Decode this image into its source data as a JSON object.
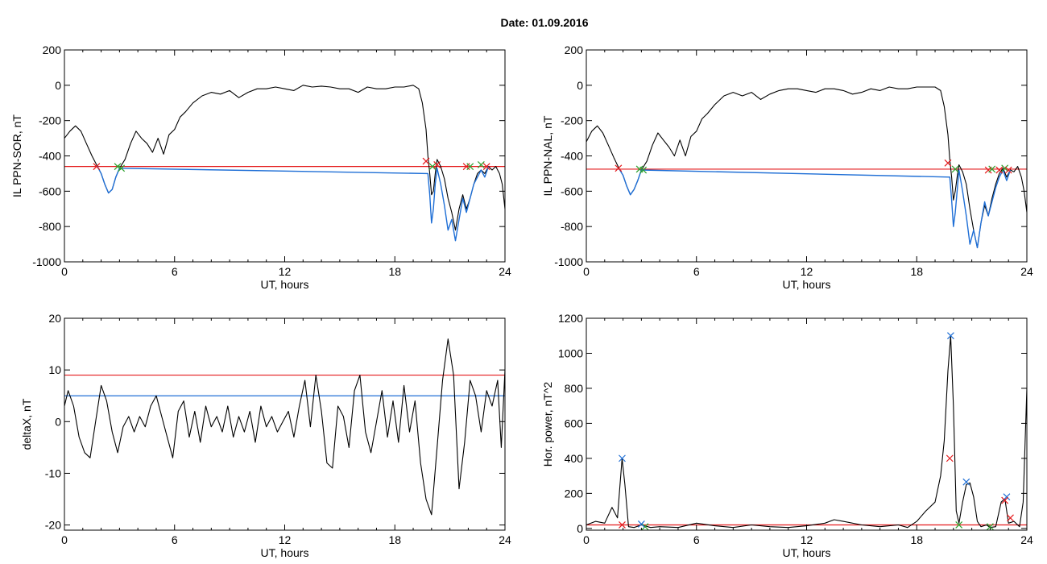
{
  "figure": {
    "title": "Date:  01.09.2016"
  },
  "colors": {
    "black": "#000000",
    "red": "#e41a1c",
    "blue": "#1f6fd6",
    "green": "#2ca02c"
  },
  "chart_data": [
    {
      "id": "ppn-sor",
      "type": "line",
      "xlabel": "UT, hours",
      "ylabel": "IL PPN-SOR, nT",
      "xlim": [
        0,
        24
      ],
      "ylim": [
        -1000,
        200
      ],
      "xticks": [
        0,
        6,
        12,
        18,
        24
      ],
      "yticks": [
        -1000,
        -800,
        -600,
        -400,
        -200,
        0,
        200
      ],
      "hlines": [
        {
          "y": -460,
          "color": "red"
        }
      ],
      "series": [
        {
          "color": "black",
          "x": [
            0,
            0.3,
            0.6,
            0.9,
            1.2,
            1.5,
            1.8,
            2.0,
            2.2,
            2.4,
            2.6,
            2.8,
            3.0,
            3.3,
            3.6,
            3.9,
            4.2,
            4.5,
            4.8,
            5.1,
            5.4,
            5.7,
            6.0,
            6.3,
            6.6,
            7.0,
            7.5,
            8.0,
            8.5,
            9.0,
            9.5,
            10.0,
            10.5,
            11.0,
            11.5,
            12.0,
            12.5,
            13.0,
            13.5,
            14.0,
            14.5,
            15.0,
            15.5,
            16.0,
            16.5,
            17.0,
            17.5,
            18.0,
            18.5,
            19.0,
            19.3,
            19.5,
            19.7,
            19.8,
            19.9,
            20.0,
            20.1,
            20.2,
            20.3,
            20.5,
            20.7,
            20.9,
            21.1,
            21.3,
            21.5,
            21.7,
            21.9,
            22.1,
            22.3,
            22.5,
            22.7,
            22.9,
            23.1,
            23.3,
            23.5,
            23.7,
            23.85,
            24.0
          ],
          "y": [
            -300,
            -260,
            -230,
            -260,
            -330,
            -400,
            -460,
            -500,
            -560,
            -610,
            -590,
            -520,
            -470,
            -420,
            -330,
            -260,
            -300,
            -330,
            -380,
            -300,
            -390,
            -280,
            -250,
            -180,
            -150,
            -100,
            -60,
            -40,
            -50,
            -30,
            -70,
            -40,
            -20,
            -20,
            -10,
            -20,
            -30,
            0,
            -10,
            -5,
            -10,
            -20,
            -20,
            -40,
            -10,
            -20,
            -20,
            -10,
            -10,
            0,
            -20,
            -100,
            -250,
            -400,
            -500,
            -620,
            -600,
            -500,
            -420,
            -460,
            -530,
            -640,
            -720,
            -820,
            -700,
            -620,
            -700,
            -640,
            -560,
            -500,
            -480,
            -500,
            -460,
            -480,
            -460,
            -500,
            -560,
            -700
          ]
        },
        {
          "color": "blue",
          "x": [
            1.8,
            2.0,
            2.2,
            2.4,
            2.6,
            2.8,
            3.0,
            19.8,
            19.9,
            20.0,
            20.1,
            20.2,
            20.3,
            20.5,
            20.7,
            20.9,
            21.1,
            21.3,
            21.5,
            21.7,
            21.9,
            22.1,
            22.3,
            22.5,
            22.7,
            22.9,
            23.1
          ],
          "y": [
            -460,
            -500,
            -560,
            -610,
            -590,
            -520,
            -470,
            -500,
            -620,
            -780,
            -700,
            -560,
            -470,
            -560,
            -680,
            -820,
            -760,
            -880,
            -760,
            -640,
            -720,
            -640,
            -560,
            -520,
            -480,
            -520,
            -460
          ]
        }
      ],
      "markers": [
        {
          "x": 1.75,
          "y": -460,
          "color": "red"
        },
        {
          "x": 2.9,
          "y": -460,
          "color": "green"
        },
        {
          "x": 3.1,
          "y": -470,
          "color": "green"
        },
        {
          "x": 19.7,
          "y": -430,
          "color": "red"
        },
        {
          "x": 20.05,
          "y": -460,
          "color": "green"
        },
        {
          "x": 20.3,
          "y": -450,
          "color": "red"
        },
        {
          "x": 21.9,
          "y": -460,
          "color": "red"
        },
        {
          "x": 22.1,
          "y": -460,
          "color": "green"
        },
        {
          "x": 22.7,
          "y": -450,
          "color": "green"
        },
        {
          "x": 23.0,
          "y": -460,
          "color": "red"
        }
      ]
    },
    {
      "id": "ppn-nal",
      "type": "line",
      "xlabel": "UT, hours",
      "ylabel": "IL PPN-NAL, nT",
      "xlim": [
        0,
        24
      ],
      "ylim": [
        -1000,
        200
      ],
      "xticks": [
        0,
        6,
        12,
        18,
        24
      ],
      "yticks": [
        -1000,
        -800,
        -600,
        -400,
        -200,
        0,
        200
      ],
      "hlines": [
        {
          "y": -475,
          "color": "red"
        }
      ],
      "series": [
        {
          "color": "black",
          "x": [
            0,
            0.3,
            0.6,
            0.9,
            1.2,
            1.5,
            1.8,
            2.0,
            2.2,
            2.4,
            2.6,
            2.8,
            3.0,
            3.3,
            3.6,
            3.9,
            4.2,
            4.5,
            4.8,
            5.1,
            5.4,
            5.7,
            6.0,
            6.3,
            6.6,
            7.0,
            7.5,
            8.0,
            8.5,
            9.0,
            9.5,
            10.0,
            10.5,
            11.0,
            11.5,
            12.0,
            12.5,
            13.0,
            13.5,
            14.0,
            14.5,
            15.0,
            15.5,
            16.0,
            16.5,
            17.0,
            17.5,
            18.0,
            18.5,
            19.0,
            19.3,
            19.5,
            19.7,
            19.8,
            19.9,
            20.0,
            20.1,
            20.2,
            20.3,
            20.5,
            20.7,
            20.9,
            21.1,
            21.3,
            21.5,
            21.7,
            21.9,
            22.1,
            22.3,
            22.5,
            22.7,
            22.9,
            23.1,
            23.3,
            23.5,
            23.7,
            23.85,
            24.0
          ],
          "y": [
            -320,
            -260,
            -230,
            -270,
            -340,
            -410,
            -475,
            -510,
            -570,
            -620,
            -590,
            -540,
            -480,
            -430,
            -340,
            -270,
            -310,
            -350,
            -400,
            -310,
            -400,
            -290,
            -260,
            -190,
            -160,
            -110,
            -60,
            -40,
            -60,
            -40,
            -80,
            -50,
            -30,
            -20,
            -20,
            -30,
            -40,
            -20,
            -20,
            -30,
            -50,
            -40,
            -20,
            -30,
            -10,
            -20,
            -20,
            -10,
            -10,
            -10,
            -30,
            -120,
            -280,
            -420,
            -520,
            -650,
            -600,
            -520,
            -450,
            -490,
            -560,
            -700,
            -820,
            -920,
            -780,
            -680,
            -740,
            -640,
            -560,
            -500,
            -470,
            -520,
            -480,
            -490,
            -460,
            -520,
            -600,
            -720
          ]
        },
        {
          "color": "blue",
          "x": [
            1.8,
            2.0,
            2.2,
            2.4,
            2.6,
            2.8,
            3.0,
            19.8,
            19.9,
            20.0,
            20.1,
            20.2,
            20.3,
            20.5,
            20.7,
            20.9,
            21.1,
            21.3,
            21.5,
            21.7,
            21.9,
            22.1,
            22.3,
            22.5,
            22.7,
            22.9,
            23.1
          ],
          "y": [
            -475,
            -510,
            -570,
            -620,
            -590,
            -540,
            -480,
            -520,
            -650,
            -800,
            -720,
            -600,
            -480,
            -600,
            -740,
            -900,
            -820,
            -920,
            -780,
            -660,
            -740,
            -660,
            -580,
            -520,
            -480,
            -540,
            -480
          ]
        }
      ],
      "markers": [
        {
          "x": 1.75,
          "y": -470,
          "color": "red"
        },
        {
          "x": 2.9,
          "y": -475,
          "color": "green"
        },
        {
          "x": 3.1,
          "y": -480,
          "color": "green"
        },
        {
          "x": 19.7,
          "y": -440,
          "color": "red"
        },
        {
          "x": 20.1,
          "y": -475,
          "color": "green"
        },
        {
          "x": 21.9,
          "y": -480,
          "color": "red"
        },
        {
          "x": 22.1,
          "y": -475,
          "color": "green"
        },
        {
          "x": 22.5,
          "y": -480,
          "color": "red"
        },
        {
          "x": 22.8,
          "y": -470,
          "color": "green"
        },
        {
          "x": 23.0,
          "y": -480,
          "color": "red"
        }
      ]
    },
    {
      "id": "deltax",
      "type": "line",
      "xlabel": "UT, hours",
      "ylabel": "deltaX, nT",
      "xlim": [
        0,
        24
      ],
      "ylim": [
        -21,
        20
      ],
      "xticks": [
        0,
        6,
        12,
        18,
        24
      ],
      "yticks": [
        -20,
        -10,
        0,
        10,
        20
      ],
      "hlines": [
        {
          "y": 9,
          "color": "red"
        },
        {
          "y": 5,
          "color": "blue"
        }
      ],
      "series": [
        {
          "color": "black",
          "x": [
            0,
            0.2,
            0.5,
            0.8,
            1.1,
            1.4,
            1.7,
            2.0,
            2.3,
            2.6,
            2.9,
            3.2,
            3.5,
            3.8,
            4.1,
            4.4,
            4.7,
            5.0,
            5.3,
            5.6,
            5.9,
            6.2,
            6.5,
            6.8,
            7.1,
            7.4,
            7.7,
            8.0,
            8.3,
            8.6,
            8.9,
            9.2,
            9.5,
            9.8,
            10.1,
            10.4,
            10.7,
            11.0,
            11.3,
            11.6,
            11.9,
            12.2,
            12.5,
            12.8,
            13.1,
            13.4,
            13.7,
            14.0,
            14.3,
            14.6,
            14.9,
            15.2,
            15.5,
            15.8,
            16.1,
            16.4,
            16.7,
            17.0,
            17.3,
            17.6,
            17.9,
            18.2,
            18.5,
            18.8,
            19.1,
            19.4,
            19.7,
            20.0,
            20.3,
            20.6,
            20.9,
            21.2,
            21.5,
            21.8,
            22.1,
            22.4,
            22.7,
            23.0,
            23.3,
            23.6,
            23.8,
            24.0
          ],
          "y": [
            3,
            6,
            3,
            -3,
            -6,
            -7,
            0,
            7,
            4,
            -2,
            -6,
            -1,
            1,
            -2,
            1,
            -1,
            3,
            5,
            1,
            -3,
            -7,
            2,
            4,
            -3,
            2,
            -4,
            3,
            -1,
            1,
            -2,
            3,
            -3,
            1,
            -2,
            2,
            -4,
            3,
            -1,
            1,
            -2,
            0,
            2,
            -3,
            3,
            8,
            -1,
            9,
            2,
            -8,
            -9,
            3,
            1,
            -5,
            6,
            9,
            -2,
            -6,
            0,
            6,
            -3,
            4,
            -4,
            7,
            -2,
            4,
            -8,
            -15,
            -18,
            -5,
            8,
            16,
            9,
            -13,
            -4,
            8,
            5,
            -2,
            6,
            3,
            8,
            -5,
            10
          ]
        }
      ],
      "markers": []
    },
    {
      "id": "hor-power",
      "type": "line",
      "xlabel": "UT, hours",
      "ylabel": "Hor. power, nT^2",
      "xlim": [
        0,
        24
      ],
      "ylim": [
        -10,
        1200
      ],
      "xticks": [
        0,
        6,
        12,
        18,
        24
      ],
      "yticks": [
        0,
        200,
        400,
        600,
        800,
        1000,
        1200
      ],
      "hlines": [
        {
          "y": 20,
          "color": "red"
        }
      ],
      "series": [
        {
          "color": "black",
          "x": [
            0,
            0.5,
            1.0,
            1.4,
            1.7,
            1.8,
            1.95,
            2.1,
            2.3,
            2.6,
            3.0,
            3.5,
            4.0,
            5.0,
            6.0,
            7.0,
            8.0,
            9.0,
            10.0,
            11.0,
            12.0,
            13.0,
            13.5,
            14.0,
            15.0,
            16.0,
            17.0,
            17.5,
            18.0,
            18.5,
            19.0,
            19.3,
            19.5,
            19.7,
            19.85,
            20.0,
            20.15,
            20.3,
            20.5,
            20.7,
            20.9,
            21.1,
            21.3,
            21.5,
            21.8,
            22.0,
            22.3,
            22.6,
            22.8,
            23.0,
            23.3,
            23.6,
            23.8,
            24.0
          ],
          "y": [
            20,
            40,
            30,
            120,
            60,
            200,
            400,
            250,
            10,
            5,
            20,
            5,
            10,
            5,
            30,
            15,
            5,
            20,
            10,
            5,
            15,
            30,
            50,
            40,
            20,
            10,
            20,
            5,
            40,
            100,
            150,
            300,
            500,
            900,
            1100,
            700,
            100,
            30,
            150,
            250,
            260,
            180,
            40,
            10,
            20,
            5,
            10,
            150,
            170,
            30,
            40,
            10,
            150,
            800
          ]
        }
      ],
      "markers": [
        {
          "x": 1.95,
          "y": 400,
          "color": "blue"
        },
        {
          "x": 1.95,
          "y": 20,
          "color": "red"
        },
        {
          "x": 3.2,
          "y": 10,
          "color": "green"
        },
        {
          "x": 3.0,
          "y": 25,
          "color": "blue"
        },
        {
          "x": 19.8,
          "y": 400,
          "color": "red"
        },
        {
          "x": 19.85,
          "y": 1100,
          "color": "blue"
        },
        {
          "x": 20.3,
          "y": 20,
          "color": "green"
        },
        {
          "x": 20.7,
          "y": 265,
          "color": "blue"
        },
        {
          "x": 22.0,
          "y": 10,
          "color": "green"
        },
        {
          "x": 22.9,
          "y": 180,
          "color": "blue"
        },
        {
          "x": 22.8,
          "y": 160,
          "color": "red"
        },
        {
          "x": 23.1,
          "y": 60,
          "color": "red"
        }
      ]
    }
  ]
}
